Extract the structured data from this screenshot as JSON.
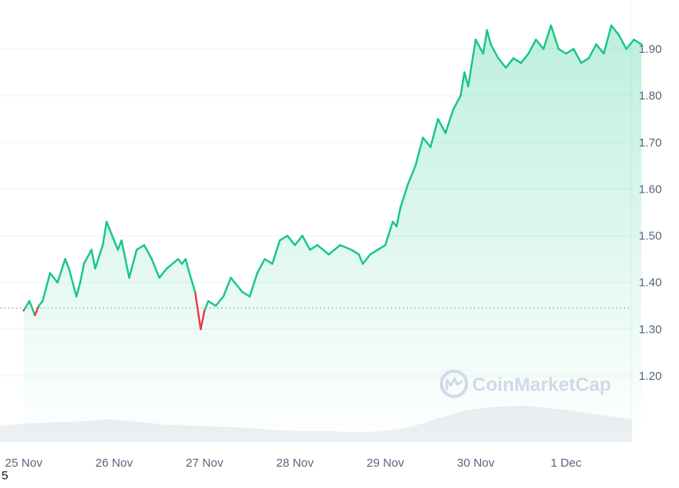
{
  "chart_data": {
    "type": "line",
    "title": "",
    "xlabel": "",
    "ylabel": "",
    "x_ticks": [
      "25 Nov",
      "26 Nov",
      "27 Nov",
      "28 Nov",
      "29 Nov",
      "30 Nov",
      "1 Dec"
    ],
    "y_ticks": [
      "1.90",
      "1.80",
      "1.70",
      "1.60",
      "1.50",
      "1.40",
      "1.30",
      "1.20"
    ],
    "ylim": [
      1.05,
      2.0
    ],
    "baseline": 1.345,
    "grid": true,
    "colors": {
      "up": "#16c784",
      "down": "#ea3943",
      "volume": "#eceff3"
    },
    "series": [
      {
        "x": [
          "25 Nov 00:00",
          "25 Nov 01:30",
          "25 Nov 03:00",
          "25 Nov 04:00",
          "25 Nov 05:00",
          "25 Nov 07:00",
          "25 Nov 09:00",
          "25 Nov 11:00",
          "25 Nov 12:00",
          "25 Nov 14:00",
          "25 Nov 15:00",
          "25 Nov 16:00",
          "25 Nov 18:00",
          "25 Nov 19:00",
          "25 Nov 21:00",
          "25 Nov 22:00",
          "26 Nov 00:00",
          "26 Nov 01:00",
          "26 Nov 02:00",
          "26 Nov 04:00",
          "26 Nov 06:00",
          "26 Nov 08:00",
          "26 Nov 10:00",
          "26 Nov 12:00",
          "26 Nov 14:00",
          "26 Nov 17:00",
          "26 Nov 18:00",
          "26 Nov 19:00",
          "26 Nov 20:00",
          "26 Nov 21:30",
          "26 Nov 23:00",
          "27 Nov 00:00",
          "27 Nov 01:00",
          "27 Nov 03:00",
          "27 Nov 05:00",
          "27 Nov 07:00",
          "27 Nov 08:00",
          "27 Nov 10:00",
          "27 Nov 12:00",
          "27 Nov 14:00",
          "27 Nov 16:00",
          "27 Nov 18:00",
          "27 Nov 20:00",
          "27 Nov 22:00",
          "28 Nov 00:00",
          "28 Nov 02:00",
          "28 Nov 04:00",
          "28 Nov 06:00",
          "28 Nov 09:00",
          "28 Nov 12:00",
          "28 Nov 15:00",
          "28 Nov 17:00",
          "28 Nov 18:00",
          "28 Nov 20:00",
          "28 Nov 22:00",
          "29 Nov 00:00",
          "29 Nov 02:00",
          "29 Nov 03:00",
          "29 Nov 04:00",
          "29 Nov 06:00",
          "29 Nov 08:00",
          "29 Nov 10:00",
          "29 Nov 12:00",
          "29 Nov 14:00",
          "29 Nov 16:00",
          "29 Nov 18:00",
          "29 Nov 20:00",
          "29 Nov 21:00",
          "29 Nov 22:00",
          "30 Nov 00:00",
          "30 Nov 02:00",
          "30 Nov 03:00",
          "30 Nov 04:00",
          "30 Nov 06:00",
          "30 Nov 08:00",
          "30 Nov 10:00",
          "30 Nov 12:00",
          "30 Nov 14:00",
          "30 Nov 16:00",
          "30 Nov 18:00",
          "30 Nov 20:00",
          "30 Nov 22:00",
          "1 Dec 00:00",
          "1 Dec 02:00",
          "1 Dec 04:00",
          "1 Dec 06:00",
          "1 Dec 08:00",
          "1 Dec 10:00",
          "1 Dec 12:00",
          "1 Dec 14:00",
          "1 Dec 16:00",
          "1 Dec 18:00",
          "1 Dec 20:00"
        ],
        "values": [
          1.34,
          1.36,
          1.33,
          1.35,
          1.36,
          1.42,
          1.4,
          1.45,
          1.43,
          1.37,
          1.4,
          1.44,
          1.47,
          1.43,
          1.48,
          1.53,
          1.49,
          1.47,
          1.49,
          1.41,
          1.47,
          1.48,
          1.45,
          1.41,
          1.43,
          1.45,
          1.44,
          1.45,
          1.42,
          1.38,
          1.3,
          1.34,
          1.36,
          1.35,
          1.37,
          1.41,
          1.4,
          1.38,
          1.37,
          1.42,
          1.45,
          1.44,
          1.49,
          1.5,
          1.48,
          1.5,
          1.47,
          1.48,
          1.46,
          1.48,
          1.47,
          1.46,
          1.44,
          1.46,
          1.47,
          1.48,
          1.53,
          1.52,
          1.56,
          1.61,
          1.65,
          1.71,
          1.69,
          1.75,
          1.72,
          1.77,
          1.8,
          1.85,
          1.82,
          1.92,
          1.89,
          1.94,
          1.91,
          1.88,
          1.86,
          1.88,
          1.87,
          1.89,
          1.92,
          1.9,
          1.95,
          1.9,
          1.89,
          1.9,
          1.87,
          1.88,
          1.91,
          1.89,
          1.95,
          1.93,
          1.9,
          1.92,
          1.91
        ]
      }
    ],
    "volume": [
      0.3,
      0.34,
      0.36,
      0.38,
      0.42,
      0.37,
      0.32,
      0.3,
      0.28,
      0.26,
      0.22,
      0.2,
      0.2,
      0.18,
      0.2,
      0.28,
      0.44,
      0.58,
      0.64,
      0.66,
      0.62,
      0.56,
      0.48,
      0.42
    ],
    "watermark": "CoinMarketCap",
    "stray_text": "5"
  }
}
